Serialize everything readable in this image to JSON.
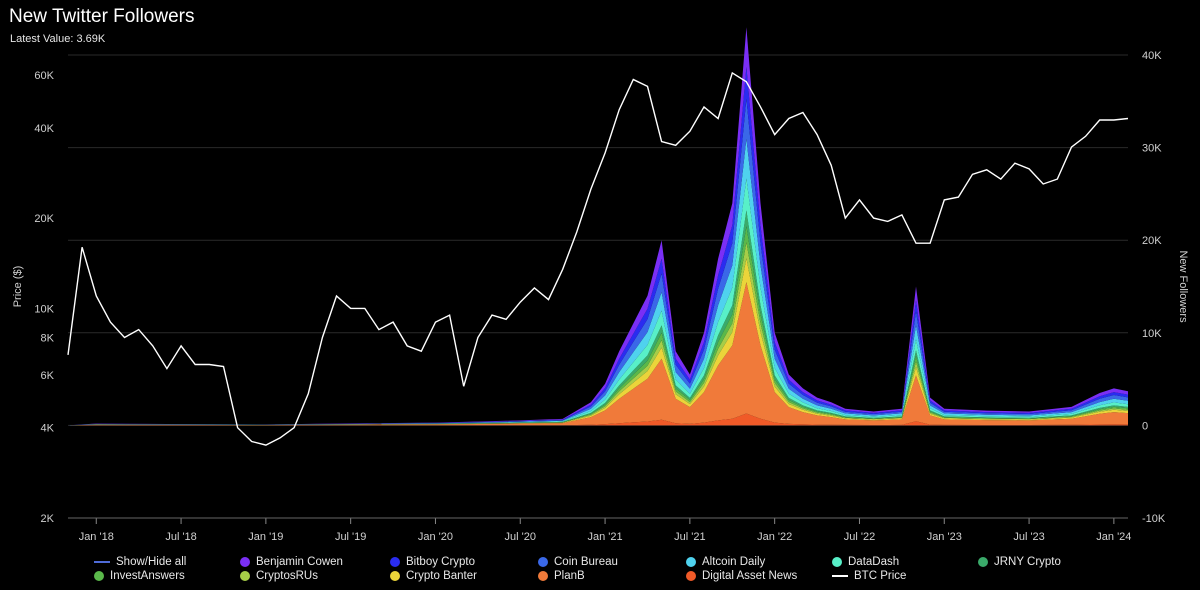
{
  "header": {
    "title": "New Twitter Followers",
    "subtitle": "Latest Value: 3.69K"
  },
  "chart_data": {
    "type": "area",
    "title": "New Twitter Followers",
    "subtitle": "Latest Value: 3.69K",
    "x_ticks": [
      "Jan '18",
      "Jul '18",
      "Jan '19",
      "Jul '19",
      "Jan '20",
      "Jul '20",
      "Jan '21",
      "Jul '21",
      "Jan '22",
      "Jul '22",
      "Jan '23",
      "Jul '23",
      "Jan '24"
    ],
    "x_range": [
      "2017-11",
      "2024-02"
    ],
    "left_axis": {
      "label": "Price ($)",
      "scale": "log",
      "ticks": [
        "2K",
        "4K",
        "6K",
        "8K",
        "10K",
        "20K",
        "40K",
        "60K"
      ]
    },
    "right_axis": {
      "label": "New Followers",
      "range": [
        -10000,
        40000
      ],
      "ticks": [
        "-10K",
        "0",
        "10K",
        "20K",
        "30K",
        "40K"
      ]
    },
    "btc_price": {
      "name": "BTC Price",
      "color": "#ffffff",
      "points": [
        [
          "2017-11",
          7000
        ],
        [
          "2017-12",
          16000
        ],
        [
          "2018-01",
          11000
        ],
        [
          "2018-02",
          9000
        ],
        [
          "2018-03",
          8000
        ],
        [
          "2018-04",
          8500
        ],
        [
          "2018-05",
          7500
        ],
        [
          "2018-06",
          6300
        ],
        [
          "2018-07",
          7500
        ],
        [
          "2018-08",
          6500
        ],
        [
          "2018-09",
          6500
        ],
        [
          "2018-10",
          6400
        ],
        [
          "2018-11",
          4000
        ],
        [
          "2018-12",
          3600
        ],
        [
          "2019-01",
          3500
        ],
        [
          "2019-02",
          3700
        ],
        [
          "2019-03",
          4000
        ],
        [
          "2019-04",
          5200
        ],
        [
          "2019-05",
          8000
        ],
        [
          "2019-06",
          11000
        ],
        [
          "2019-07",
          10000
        ],
        [
          "2019-08",
          10000
        ],
        [
          "2019-09",
          8500
        ],
        [
          "2019-10",
          9000
        ],
        [
          "2019-11",
          7500
        ],
        [
          "2019-12",
          7200
        ],
        [
          "2020-01",
          9000
        ],
        [
          "2020-02",
          9500
        ],
        [
          "2020-03",
          5500
        ],
        [
          "2020-04",
          8000
        ],
        [
          "2020-05",
          9500
        ],
        [
          "2020-06",
          9200
        ],
        [
          "2020-07",
          10500
        ],
        [
          "2020-08",
          11700
        ],
        [
          "2020-09",
          10700
        ],
        [
          "2020-10",
          13500
        ],
        [
          "2020-11",
          18000
        ],
        [
          "2020-12",
          25000
        ],
        [
          "2021-01",
          33000
        ],
        [
          "2021-02",
          46000
        ],
        [
          "2021-03",
          58000
        ],
        [
          "2021-04",
          55000
        ],
        [
          "2021-05",
          36000
        ],
        [
          "2021-06",
          35000
        ],
        [
          "2021-07",
          39000
        ],
        [
          "2021-08",
          47000
        ],
        [
          "2021-09",
          43000
        ],
        [
          "2021-10",
          61000
        ],
        [
          "2021-11",
          57000
        ],
        [
          "2021-12",
          47000
        ],
        [
          "2022-01",
          38000
        ],
        [
          "2022-02",
          43000
        ],
        [
          "2022-03",
          45000
        ],
        [
          "2022-04",
          38000
        ],
        [
          "2022-05",
          30000
        ],
        [
          "2022-06",
          20000
        ],
        [
          "2022-07",
          23000
        ],
        [
          "2022-08",
          20000
        ],
        [
          "2022-09",
          19500
        ],
        [
          "2022-10",
          20500
        ],
        [
          "2022-11",
          16500
        ],
        [
          "2022-12",
          16500
        ],
        [
          "2023-01",
          23000
        ],
        [
          "2023-02",
          23500
        ],
        [
          "2023-03",
          28000
        ],
        [
          "2023-04",
          29000
        ],
        [
          "2023-05",
          27000
        ],
        [
          "2023-06",
          30500
        ],
        [
          "2023-07",
          29200
        ],
        [
          "2023-08",
          26000
        ],
        [
          "2023-09",
          27000
        ],
        [
          "2023-10",
          34500
        ],
        [
          "2023-11",
          37500
        ],
        [
          "2023-12",
          42500
        ],
        [
          "2024-01",
          42500
        ],
        [
          "2024-02",
          43000
        ]
      ]
    },
    "followers_total": {
      "points": [
        [
          "2017-11",
          0
        ],
        [
          "2018-01",
          200
        ],
        [
          "2018-06",
          150
        ],
        [
          "2019-01",
          100
        ],
        [
          "2019-06",
          200
        ],
        [
          "2020-01",
          300
        ],
        [
          "2020-06",
          500
        ],
        [
          "2020-10",
          700
        ],
        [
          "2020-12",
          2500
        ],
        [
          "2021-01",
          4500
        ],
        [
          "2021-02",
          8000
        ],
        [
          "2021-03",
          11000
        ],
        [
          "2021-04",
          14000
        ],
        [
          "2021-05",
          20000
        ],
        [
          "2021-06",
          8000
        ],
        [
          "2021-07",
          5500
        ],
        [
          "2021-08",
          10000
        ],
        [
          "2021-09",
          18000
        ],
        [
          "2021-10",
          24000
        ],
        [
          "2021-11",
          43000
        ],
        [
          "2021-12",
          24000
        ],
        [
          "2022-01",
          10000
        ],
        [
          "2022-02",
          5500
        ],
        [
          "2022-03",
          4000
        ],
        [
          "2022-04",
          3000
        ],
        [
          "2022-05",
          2500
        ],
        [
          "2022-06",
          1800
        ],
        [
          "2022-08",
          1500
        ],
        [
          "2022-10",
          1800
        ],
        [
          "2022-11",
          15000
        ],
        [
          "2022-12",
          3000
        ],
        [
          "2023-01",
          1800
        ],
        [
          "2023-04",
          1600
        ],
        [
          "2023-07",
          1500
        ],
        [
          "2023-10",
          2000
        ],
        [
          "2023-12",
          3500
        ],
        [
          "2024-01",
          4000
        ],
        [
          "2024-02",
          3690
        ]
      ]
    },
    "series": [
      {
        "name": "Show/Hide all",
        "color": "#4f6bd8",
        "share": 0
      },
      {
        "name": "Benjamin Cowen",
        "color": "#7a2ff5",
        "share": 0.1
      },
      {
        "name": "Bitboy Crypto",
        "color": "#2a2cf0",
        "share": 0.08
      },
      {
        "name": "Coin Bureau",
        "color": "#3a68e8",
        "share": 0.1
      },
      {
        "name": "Altcoin Daily",
        "color": "#4fd2ee",
        "share": 0.1
      },
      {
        "name": "DataDash",
        "color": "#58f0c8",
        "share": 0.08
      },
      {
        "name": "JRNY Crypto",
        "color": "#3aaa6a",
        "share": 0.04
      },
      {
        "name": "InvestAnswers",
        "color": "#5ab84a",
        "share": 0.04
      },
      {
        "name": "CryptosRUs",
        "color": "#a6cd48",
        "share": 0.04
      },
      {
        "name": "Crypto Banter",
        "color": "#ebd43a",
        "share": 0.06
      },
      {
        "name": "PlanB",
        "color": "#f07a3a",
        "share": 0.33
      },
      {
        "name": "Digital Asset News",
        "color": "#f05a28",
        "share": 0.03
      },
      {
        "name": "BTC Price",
        "color": "#ffffff",
        "share": 0
      }
    ],
    "legend_placement": "bottom"
  }
}
